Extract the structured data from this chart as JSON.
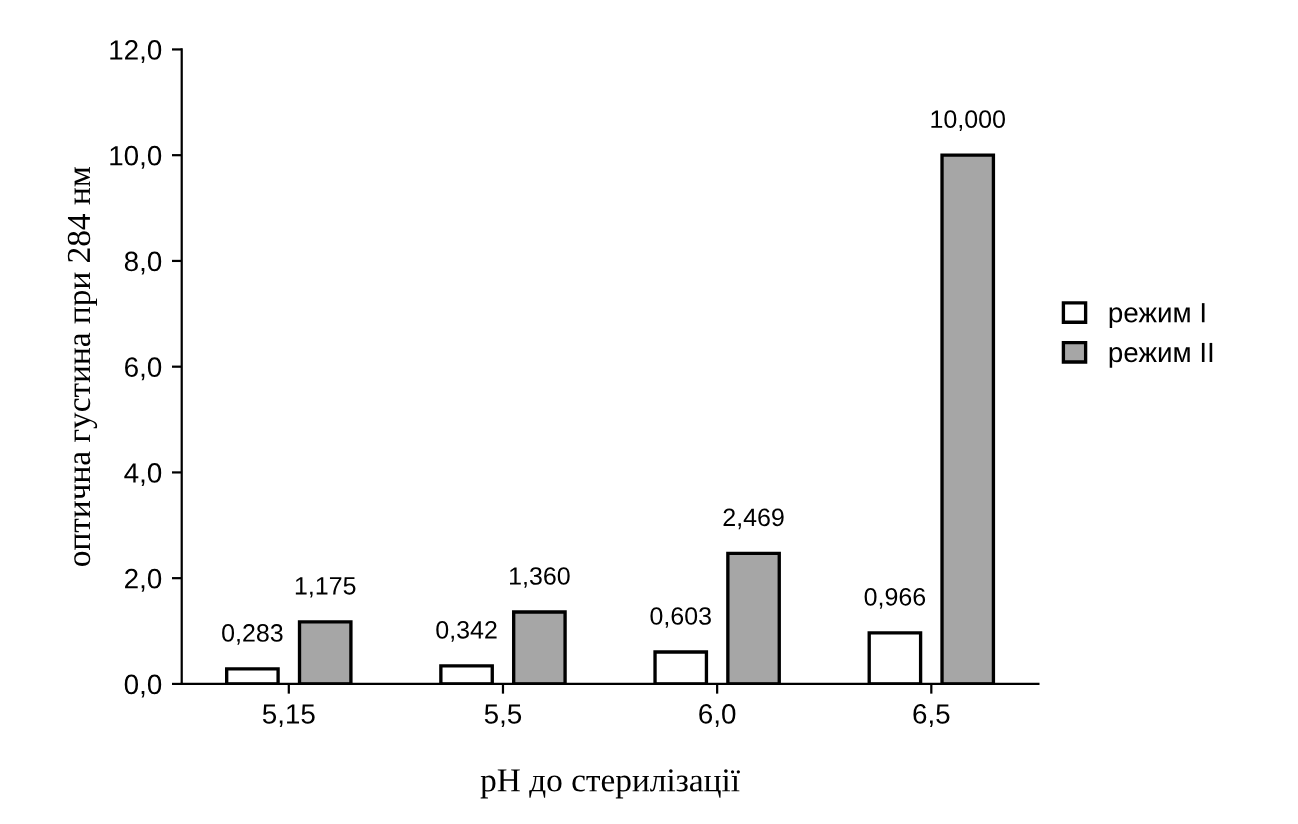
{
  "chart_data": {
    "type": "bar",
    "xlabel": "pH до стерилізації",
    "ylabel": "оптична густина при 284 нм",
    "categories": [
      "5,15",
      "5,5",
      "6,0",
      "6,5"
    ],
    "series": [
      {
        "name": "режим I",
        "color": "#ffffff",
        "values": [
          0.283,
          0.342,
          0.603,
          0.966
        ],
        "value_labels": [
          "0,283",
          "0,342",
          "0,603",
          "0,966"
        ]
      },
      {
        "name": "режим II",
        "color": "#a6a6a6",
        "values": [
          1.175,
          1.36,
          2.469,
          10.0
        ],
        "value_labels": [
          "1,175",
          "1,360",
          "2,469",
          "10,000"
        ]
      }
    ],
    "ylim": [
      0,
      12
    ],
    "yticks": [
      {
        "value": 0,
        "label": "0,0"
      },
      {
        "value": 2,
        "label": "2,0"
      },
      {
        "value": 4,
        "label": "4,0"
      },
      {
        "value": 6,
        "label": "6,0"
      },
      {
        "value": 8,
        "label": "8,0"
      },
      {
        "value": 10,
        "label": "10,0"
      },
      {
        "value": 12,
        "label": "12,0"
      }
    ],
    "grid": false,
    "legend": "right"
  }
}
